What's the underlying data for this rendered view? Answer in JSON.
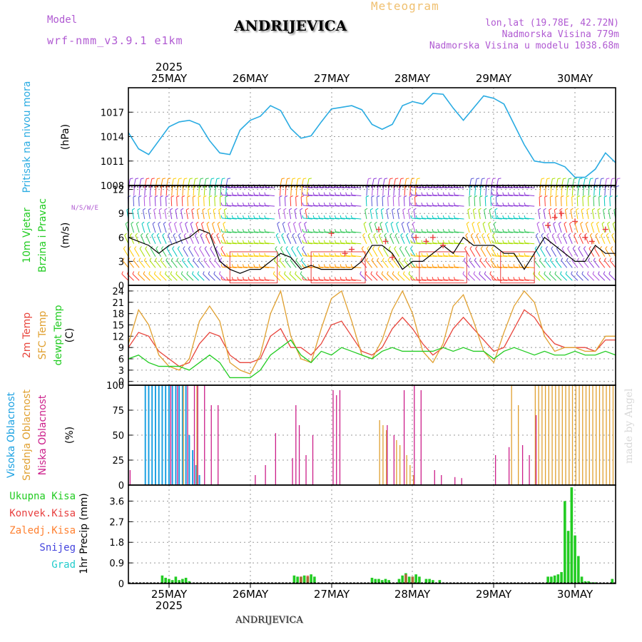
{
  "header": {
    "model_label": "Model",
    "model_name": "wrf-nmm_v3.9.1  e1km",
    "title": "ANDRIJEVICA",
    "subtitle": "Meteogram",
    "coords": "lon,lat (19.78E, 42.72N)",
    "elevation": "Nadmorska Visina 779m",
    "model_elevation": "Nadmorska Visina u modelu 1038.68m",
    "footer": "ANDRIJEVICA",
    "watermark": "made by Angel",
    "year": "2025"
  },
  "colors": {
    "pressure": "#29abe2",
    "temp2m": "#e8453c",
    "sfc_temp": "#e0a030",
    "dewpt": "#22cc22",
    "high_cloud": "#1ba1e2",
    "mid_cloud": "#e0a030",
    "low_cloud": "#cc1f8a",
    "total_precip": "#22cc22",
    "convective": "#e84040",
    "freezing": "#ff8030",
    "snow": "#4444dd",
    "hail": "#22cccc",
    "wind_speed_line": "#000000",
    "gust_marker": "#e84040"
  },
  "dates": [
    "25MAY",
    "26MAY",
    "27MAY",
    "28MAY",
    "29MAY",
    "30MAY"
  ],
  "chart_data": [
    {
      "type": "line",
      "ylabel": [
        "Pritisak na nivou mora",
        "(hPa)"
      ],
      "yticks": [
        1008,
        1011,
        1014,
        1017
      ],
      "ylim": [
        1008,
        1020
      ],
      "x_hours": [
        0,
        3,
        6,
        9,
        12,
        15,
        18,
        21,
        24,
        27,
        30,
        33,
        36,
        39,
        42,
        45,
        48,
        51,
        54,
        57,
        60,
        63,
        66,
        69,
        72,
        75,
        78,
        81,
        84,
        87,
        90,
        93,
        96,
        99,
        102,
        105,
        108,
        111,
        114,
        117,
        120,
        123,
        126,
        129,
        132,
        135,
        138,
        141,
        144
      ],
      "series": [
        {
          "values": [
            1014.5,
            1012.5,
            1011.8,
            1013.5,
            1015.2,
            1015.8,
            1016.0,
            1015.5,
            1013.5,
            1012.0,
            1011.8,
            1014.8,
            1016.0,
            1016.5,
            1017.8,
            1017.2,
            1015.0,
            1013.8,
            1014.1,
            1015.8,
            1017.4,
            1017.6,
            1017.8,
            1017.3,
            1015.5,
            1014.9,
            1015.5,
            1017.8,
            1018.3,
            1018.0,
            1019.3,
            1019.2,
            1017.5,
            1016.0,
            1017.5,
            1019.0,
            1018.7,
            1018.0,
            1015.5,
            1013.0,
            1011.0,
            1010.8,
            1010.8,
            1010.3,
            1009.0,
            1009.0,
            1010.0,
            1012.0,
            1010.8
          ]
        }
      ]
    },
    {
      "type": "line",
      "ylabel": [
        "10m Vjetar",
        "Brzina i Pravac",
        "(m/s)"
      ],
      "legend_dirs": "N/S/W/E",
      "yticks": [
        0,
        3,
        6,
        9,
        12
      ],
      "ylim": [
        0,
        12.5
      ],
      "x_hours": [
        0,
        3,
        6,
        9,
        12,
        15,
        18,
        21,
        24,
        27,
        30,
        33,
        36,
        39,
        42,
        45,
        48,
        51,
        54,
        57,
        60,
        63,
        66,
        69,
        72,
        75,
        78,
        81,
        84,
        87,
        90,
        93,
        96,
        99,
        102,
        105,
        108,
        111,
        114,
        117,
        120,
        123,
        126,
        129,
        132,
        135,
        138,
        141,
        144
      ],
      "series": [
        {
          "name": "speed",
          "values": [
            6,
            5.5,
            5,
            4,
            5,
            5.5,
            6,
            7,
            6.5,
            3,
            2,
            1.5,
            2,
            2,
            3,
            4,
            3.5,
            2,
            2.5,
            2,
            2,
            2,
            2,
            3,
            5,
            5,
            4,
            2,
            3,
            3,
            4,
            5,
            4,
            6,
            5,
            5,
            5,
            4,
            4,
            2,
            4,
            6,
            5,
            4,
            3,
            3,
            5,
            4,
            4
          ]
        }
      ],
      "gust_hours": [
        60,
        64,
        66,
        74,
        76,
        78,
        85,
        88,
        90,
        93,
        124,
        126,
        128,
        132,
        135,
        137,
        141
      ],
      "gust_values": [
        6.5,
        4,
        4.5,
        7,
        5.5,
        3.5,
        6,
        5.5,
        6,
        5,
        7.5,
        8.5,
        9,
        8,
        6,
        5.5,
        7
      ]
    },
    {
      "type": "line",
      "ylabel": [
        "2m Temp",
        "SFC Temp",
        "dewpt Temp",
        "(C)"
      ],
      "yticks": [
        0,
        3,
        6,
        9,
        12,
        15,
        18,
        21,
        24
      ],
      "ylim": [
        -1,
        25.5
      ],
      "x_hours": [
        0,
        3,
        6,
        9,
        12,
        15,
        18,
        21,
        24,
        27,
        30,
        33,
        36,
        39,
        42,
        45,
        48,
        51,
        54,
        57,
        60,
        63,
        66,
        69,
        72,
        75,
        78,
        81,
        84,
        87,
        90,
        93,
        96,
        99,
        102,
        105,
        108,
        111,
        114,
        117,
        120,
        123,
        126,
        129,
        132,
        135,
        138,
        141,
        144
      ],
      "series": [
        {
          "name": "2m Temp",
          "values": [
            9,
            13,
            12,
            8,
            6,
            4,
            5,
            10,
            13,
            12,
            7,
            5,
            5,
            6,
            12,
            14,
            9,
            9,
            7,
            10,
            15,
            16,
            12,
            8,
            7,
            9,
            14,
            17,
            14,
            10,
            7,
            9,
            14,
            17,
            14,
            11,
            8,
            9,
            14,
            19,
            17,
            13,
            10,
            9,
            9,
            9,
            8,
            11,
            11
          ]
        },
        {
          "name": "SFC Temp",
          "values": [
            10,
            19,
            15,
            7,
            4,
            3,
            6,
            16,
            20,
            16,
            5,
            3,
            2,
            7,
            18,
            24,
            12,
            6,
            5,
            14,
            22,
            24,
            16,
            7,
            6,
            11,
            19,
            24,
            18,
            8,
            5,
            10,
            20,
            23,
            16,
            8,
            5,
            13,
            20,
            24,
            21,
            12,
            8,
            9,
            9,
            8,
            8,
            12,
            12
          ]
        },
        {
          "name": "dewpt Temp",
          "values": [
            6,
            7,
            5,
            4,
            4,
            4,
            3,
            5,
            7,
            5,
            1,
            1,
            1,
            3,
            7,
            9,
            11,
            7,
            5,
            8,
            7,
            9,
            8,
            7,
            6,
            8,
            9,
            8,
            8,
            8,
            8,
            9,
            8,
            9,
            8,
            8,
            6,
            8,
            9,
            8,
            7,
            8,
            7,
            7,
            8,
            7,
            7,
            8,
            7
          ]
        }
      ]
    },
    {
      "type": "bar",
      "ylabel": [
        "Visoka Oblacnost",
        "Srednja Oblacnost",
        "Niska Oblacnost",
        "(%)"
      ],
      "yticks": [
        0,
        25,
        50,
        75,
        100
      ],
      "ylim": [
        0,
        100
      ],
      "series": [
        {
          "name": "Visoka Oblacnost",
          "hours": [
            5,
            6,
            7,
            8,
            9,
            10,
            11,
            12,
            13,
            14,
            15,
            16,
            17,
            18,
            19,
            20,
            21
          ],
          "values": [
            100,
            100,
            100,
            100,
            100,
            100,
            100,
            100,
            100,
            100,
            100,
            100,
            100,
            50,
            35,
            20,
            10
          ]
        },
        {
          "name": "Srednja Oblacnost",
          "hours": [
            16,
            20,
            74,
            75,
            76,
            79,
            80,
            82,
            83,
            84,
            113,
            115,
            120,
            121,
            122,
            123,
            124,
            125,
            126,
            127,
            128,
            129,
            130,
            131,
            132,
            133,
            134,
            135,
            136,
            137,
            138,
            139,
            140,
            141,
            142,
            143
          ],
          "values": [
            100,
            100,
            65,
            60,
            55,
            45,
            40,
            30,
            20,
            10,
            100,
            80,
            100,
            100,
            100,
            100,
            100,
            100,
            100,
            100,
            100,
            100,
            100,
            100,
            100,
            100,
            100,
            100,
            100,
            100,
            100,
            100,
            100,
            100,
            100,
            100
          ]
        },
        {
          "name": "Niska Oblacnost",
          "hours": [
            0,
            12,
            14,
            17,
            19,
            20,
            22,
            24,
            26,
            37,
            40,
            43,
            48,
            49,
            50,
            52,
            54,
            60,
            61,
            62,
            76,
            78,
            81,
            84,
            86,
            90,
            92,
            96,
            98,
            108,
            112,
            116,
            118,
            120
          ],
          "values": [
            15,
            100,
            100,
            100,
            100,
            100,
            100,
            80,
            80,
            10,
            20,
            52,
            27,
            80,
            60,
            30,
            50,
            95,
            90,
            95,
            60,
            50,
            95,
            100,
            95,
            15,
            10,
            8,
            7,
            30,
            38,
            40,
            30,
            70
          ]
        }
      ]
    },
    {
      "type": "bar",
      "ylabel": [
        "1hr Precip (mm)"
      ],
      "legend": [
        "Ukupna Kisa",
        "Konvek.Kisa",
        "Zaledj.Kisa",
        "Snijeg",
        "Grad"
      ],
      "yticks": [
        0,
        0.9,
        1.8,
        2.7,
        3.6
      ],
      "ylim": [
        0,
        4.3
      ],
      "series": [
        {
          "name": "Ukupna Kisa",
          "hours": [
            10,
            11,
            12,
            13,
            14,
            15,
            16,
            17,
            18,
            49,
            50,
            51,
            52,
            53,
            54,
            55,
            72,
            73,
            74,
            75,
            76,
            77,
            80,
            81,
            82,
            83,
            84,
            85,
            86,
            88,
            89,
            90,
            92,
            124,
            125,
            126,
            127,
            128,
            129,
            130,
            131,
            132,
            133,
            134,
            135,
            136,
            137,
            138,
            143
          ],
          "values": [
            0.35,
            0.25,
            0.2,
            0.15,
            0.3,
            0.15,
            0.2,
            0.25,
            0.1,
            0.35,
            0.3,
            0.3,
            0.35,
            0.3,
            0.4,
            0.3,
            0.25,
            0.2,
            0.2,
            0.15,
            0.2,
            0.15,
            0.2,
            0.35,
            0.45,
            0.3,
            0.3,
            0.4,
            0.3,
            0.2,
            0.2,
            0.15,
            0.15,
            0.3,
            0.3,
            0.35,
            0.4,
            0.5,
            3.6,
            2.3,
            4.2,
            2.1,
            1.2,
            0.3,
            0.1,
            0.1,
            0.05,
            0.05,
            0.2
          ]
        },
        {
          "name": "Konvek.Kisa",
          "hours": [
            51,
            53,
            82,
            84
          ],
          "values": [
            0.3,
            0.35,
            0.4,
            0.3
          ]
        },
        {
          "name": "Zaledj.Kisa",
          "hours": [],
          "values": []
        },
        {
          "name": "Snijeg",
          "hours": [],
          "values": []
        },
        {
          "name": "Grad",
          "hours": [],
          "values": []
        }
      ]
    }
  ]
}
